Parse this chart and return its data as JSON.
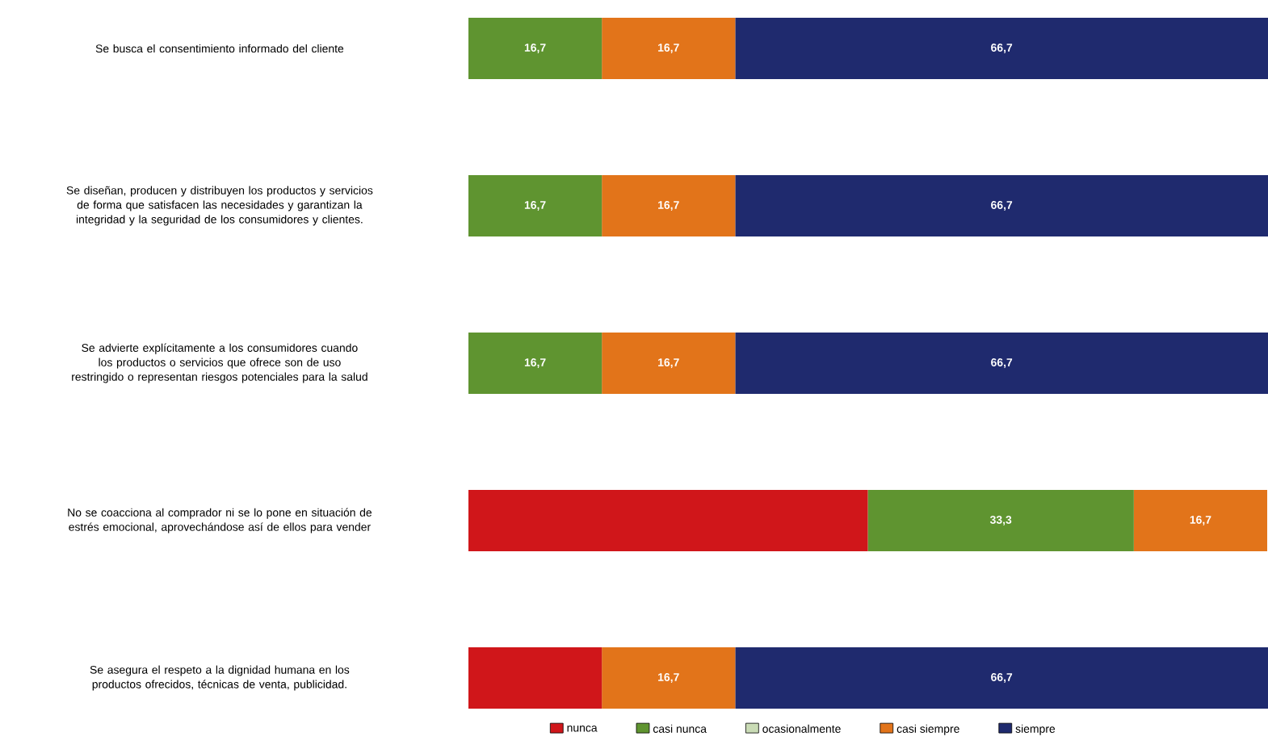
{
  "chart_data": {
    "type": "bar",
    "orientation": "horizontal",
    "stacked": true,
    "categories": [
      "Se busca el consentimiento informado del cliente",
      "Se diseñan, producen y distribuyen los productos y servicios de forma que satisfacen las necesidades y garantizan la integridad y la seguridad de los consumidores y clientes.",
      "Se advierte explícitamente a los consumidores cuando los productos o servicios que ofrece son de uso restringido o representan riesgos potenciales para la salud",
      "No se coacciona al comprador ni se lo pone en situación de estrés emocional, aprovechándose así de ellos para vender",
      "Se asegura el respeto a la dignidad humana en los productos ofrecidos, técnicas de venta, publicidad."
    ],
    "series": [
      {
        "name": "nunca",
        "color": "#d0161a",
        "values": [
          0,
          0,
          0,
          50,
          16.7
        ],
        "value_labels": [
          null,
          null,
          null,
          null,
          null
        ]
      },
      {
        "name": "casi nunca",
        "color": "#5f9430",
        "values": [
          16.7,
          16.7,
          16.7,
          33.3,
          0
        ],
        "value_labels": [
          "16,7",
          "16,7",
          "16,7",
          "33,3",
          null
        ]
      },
      {
        "name": "ocasionalmente",
        "color": "#c9dbb5",
        "values": [
          0,
          0,
          0,
          0,
          0
        ],
        "value_labels": [
          null,
          null,
          null,
          null,
          null
        ]
      },
      {
        "name": "casi siempre",
        "color": "#e2741a",
        "values": [
          16.7,
          16.7,
          16.7,
          16.7,
          16.7
        ],
        "value_labels": [
          "16,7",
          "16,7",
          "16,7",
          "16,7",
          "16,7"
        ]
      },
      {
        "name": "siempre",
        "color": "#1f2a6e",
        "values": [
          66.7,
          66.7,
          66.7,
          0,
          66.7
        ],
        "value_labels": [
          "66,7",
          "66,7",
          "66,7",
          null,
          "66,7"
        ]
      }
    ],
    "xlim": [
      0,
      100.1
    ],
    "tick_labels": "y",
    "legend": "bottom"
  }
}
